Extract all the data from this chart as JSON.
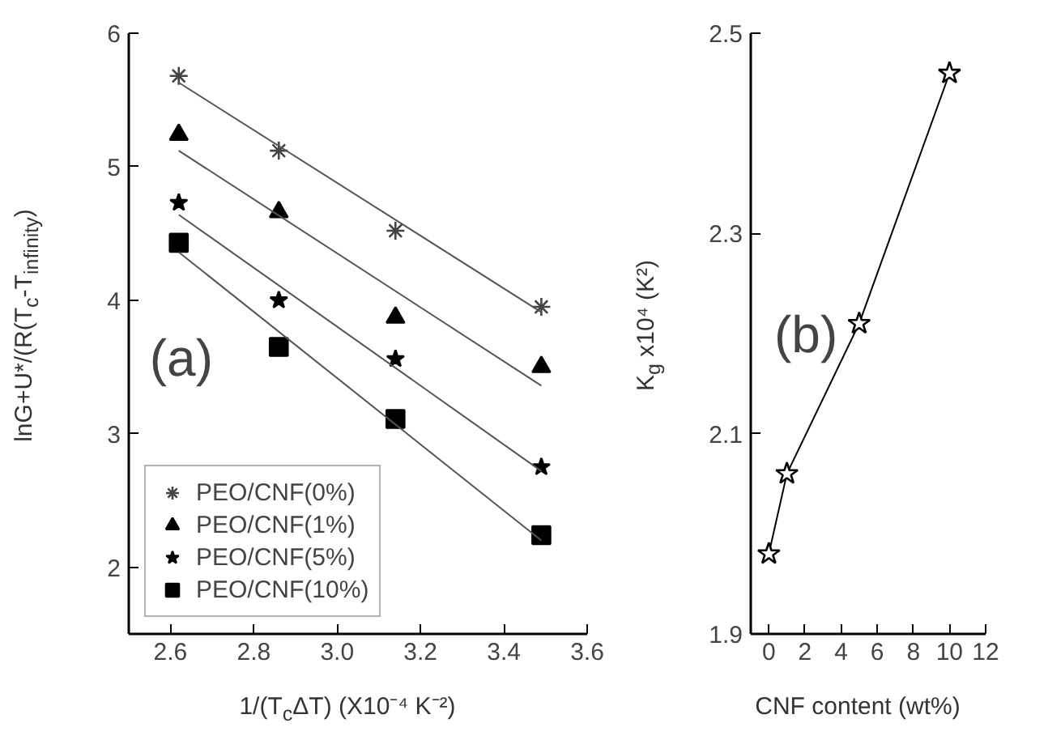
{
  "chart_data": [
    {
      "type": "scatter",
      "xlabel": "1/(T$_{c}$ΔT) (X10⁻⁴ K⁻²)",
      "ylabel": "lnG+U*/(R(T$_{c}$-T$_{infinity}$)",
      "annotations": [
        "(a)"
      ],
      "xlim": [
        2.5,
        3.6
      ],
      "ylim": [
        1.5,
        6
      ],
      "xticks": [
        {
          "value": 2.6,
          "label": "2.6"
        },
        {
          "value": 2.8,
          "label": "2.8"
        },
        {
          "value": 3.0,
          "label": "3.0"
        },
        {
          "value": 3.2,
          "label": "3.2"
        },
        {
          "value": 3.4,
          "label": "3.4"
        },
        {
          "value": 3.6,
          "label": "3.6"
        }
      ],
      "yticks": [
        2,
        3,
        4,
        5,
        6
      ],
      "grid": false,
      "legend": "bottom left",
      "series": [
        {
          "name": "PEO/CNF(0%)",
          "color": "#444444",
          "marker": "cross",
          "x": [
            2.62,
            2.86,
            3.14,
            3.49
          ],
          "values": [
            5.68,
            5.12,
            4.52,
            3.95
          ]
        },
        {
          "name": "PEO/CNF(1%)",
          "color": "#000000",
          "marker": "triangle",
          "x": [
            2.62,
            2.86,
            3.14,
            3.49
          ],
          "values": [
            5.24,
            4.66,
            3.87,
            3.5
          ]
        },
        {
          "name": "PEO/CNF(5%)",
          "color": "#000000",
          "marker": "star",
          "x": [
            2.62,
            2.86,
            3.14,
            3.49
          ],
          "values": [
            4.73,
            4.0,
            3.56,
            2.75
          ]
        },
        {
          "name": "PEO/CNF(10%)",
          "color": "#000000",
          "marker": "square",
          "x": [
            2.62,
            2.86,
            3.14,
            3.49
          ],
          "values": [
            4.43,
            3.65,
            3.11,
            2.24
          ]
        },
        {
          "type": "line",
          "color": "#555555",
          "marker": "none",
          "x": [
            2.62,
            3.49
          ],
          "values": [
            5.63,
            3.91
          ]
        },
        {
          "type": "line",
          "color": "#555555",
          "marker": "none",
          "x": [
            2.62,
            3.49
          ],
          "values": [
            5.12,
            3.36
          ]
        },
        {
          "type": "line",
          "color": "#555555",
          "marker": "none",
          "x": [
            2.62,
            3.49
          ],
          "values": [
            4.64,
            2.72
          ]
        },
        {
          "type": "line",
          "color": "#555555",
          "marker": "none",
          "x": [
            2.62,
            3.49
          ],
          "values": [
            4.36,
            2.2
          ]
        }
      ]
    },
    {
      "type": "line",
      "xlabel": "CNF content (wt%)",
      "ylabel": "K$_{g}$ x10⁴ (K²)",
      "annotations": [
        "(b)"
      ],
      "xlim": [
        -1,
        12
      ],
      "ylim": [
        1.9,
        2.5
      ],
      "xticks": [
        0,
        2,
        4,
        6,
        8,
        10,
        12
      ],
      "yticks": [
        {
          "value": 1.9,
          "label": "1.9"
        },
        {
          "value": 2.1,
          "label": "2.1"
        },
        {
          "value": 2.3,
          "label": "2.3"
        },
        {
          "value": 2.5,
          "label": "2.5"
        }
      ],
      "grid": false,
      "marker": "star",
      "line_style": "solid",
      "series": [
        {
          "color": "#000000",
          "x": [
            0,
            1,
            5,
            10
          ],
          "values": [
            1.98,
            2.06,
            2.21,
            2.46
          ]
        }
      ]
    }
  ]
}
